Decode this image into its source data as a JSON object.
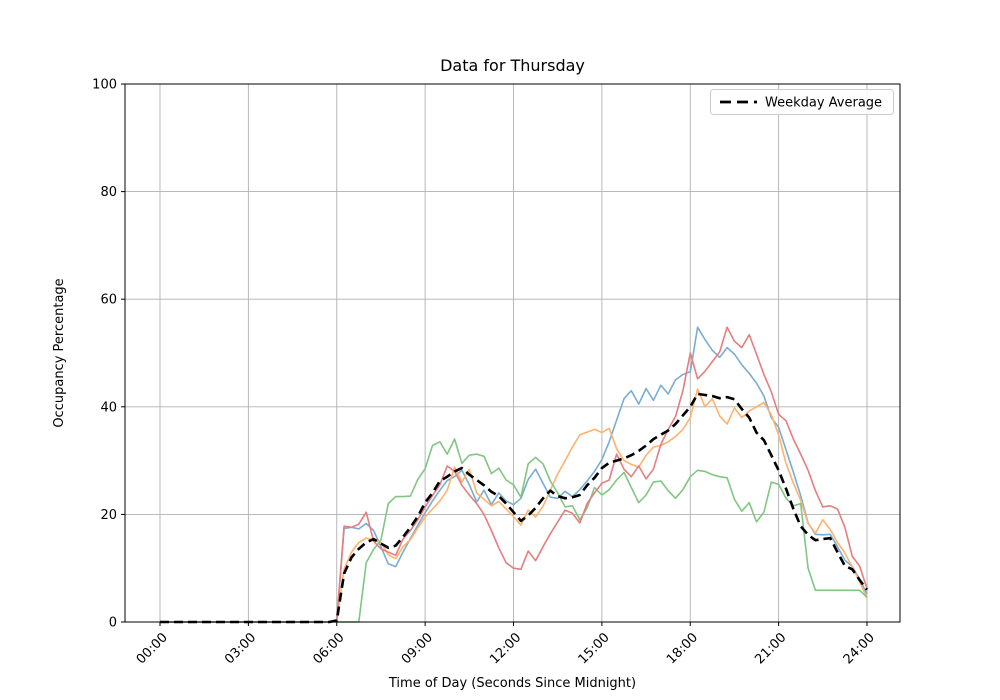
{
  "figure": {
    "title": "Data for Thursday",
    "xlabel": "Time of Day (Seconds Since Midnight)",
    "ylabel": "Occupancy Percentage",
    "legend_label": "Weekday Average"
  },
  "chart_data": {
    "type": "line",
    "title": "Data for Thursday",
    "xlabel": "Time of Day (Seconds Since Midnight)",
    "ylabel": "Occupancy Percentage",
    "ylim": [
      0,
      100
    ],
    "x_range_hours": [
      0,
      24
    ],
    "grid": true,
    "grid_color": "#b0b0b0",
    "x_tick_labels": [
      "00:00",
      "03:00",
      "06:00",
      "09:00",
      "12:00",
      "15:00",
      "18:00",
      "21:00",
      "24:00"
    ],
    "x_tick_hours": [
      0,
      3,
      6,
      9,
      12,
      15,
      18,
      21,
      24
    ],
    "y_ticks": [
      0,
      20,
      40,
      60,
      80,
      100
    ],
    "legend": {
      "position": "upper right",
      "entries": [
        {
          "label": "Weekday Average",
          "color": "#000000",
          "dashed": true
        }
      ]
    },
    "x_start_hour": 0,
    "x_step_hour": 0.25,
    "series": [
      {
        "name": "day-series-blue",
        "color": "#79add2",
        "base_color": "#1f77b4",
        "alpha": 0.6,
        "style": "solid",
        "width": 1.6,
        "values": [
          0,
          0,
          0,
          0,
          0,
          0,
          0,
          0,
          0,
          0,
          0,
          0,
          0,
          0,
          0,
          0,
          0,
          0,
          0,
          0,
          0,
          0,
          0,
          0,
          0.3,
          17.4,
          17.6,
          17.3,
          18.3,
          17.0,
          14.0,
          10.8,
          10.3,
          13.0,
          15.5,
          18.0,
          20.3,
          22.5,
          24.5,
          26.3,
          27.0,
          28.2,
          25.5,
          22.3,
          24.5,
          21.8,
          24.0,
          22.5,
          21.8,
          23.0,
          26.5,
          28.4,
          25.8,
          23.2,
          23.0,
          24.3,
          23.3,
          24.6,
          26.2,
          28.0,
          30.2,
          33.5,
          37.5,
          41.5,
          43.0,
          40.5,
          43.4,
          41.2,
          44.0,
          42.4,
          45.0,
          46.0,
          46.5,
          54.8,
          52.5,
          50.5,
          49.2,
          51.0,
          49.8,
          47.8,
          46.2,
          44.4,
          42.0,
          38.0,
          36.2,
          32.0,
          27.8,
          23.5,
          18.4,
          16.3,
          16.2,
          16.3,
          14.0,
          11.5,
          10.3,
          8.0,
          5.2
        ]
      },
      {
        "name": "day-series-orange",
        "color": "#ffb26e",
        "base_color": "#ff7f0e",
        "alpha": 0.6,
        "style": "solid",
        "width": 1.6,
        "values": [
          0,
          0,
          0,
          0,
          0,
          0,
          0,
          0,
          0,
          0,
          0,
          0,
          0,
          0,
          0,
          0,
          0,
          0,
          0,
          0,
          0,
          0,
          0,
          0,
          0.3,
          9.8,
          13.0,
          14.8,
          15.6,
          15.2,
          14.8,
          12.5,
          11.8,
          14.0,
          15.3,
          17.5,
          19.5,
          21.0,
          22.5,
          24.5,
          28.8,
          26.0,
          28.4,
          24.0,
          22.8,
          21.6,
          22.4,
          21.0,
          19.6,
          18.0,
          20.8,
          19.5,
          21.5,
          24.5,
          27.5,
          30.0,
          32.5,
          34.8,
          35.3,
          35.8,
          35.2,
          36.0,
          32.2,
          30.0,
          29.3,
          28.8,
          31.0,
          32.5,
          32.8,
          33.5,
          34.5,
          35.8,
          38.0,
          43.3,
          40.0,
          41.5,
          38.3,
          36.8,
          39.8,
          38.0,
          39.2,
          40.0,
          40.8,
          38.5,
          34.8,
          29.5,
          25.8,
          22.6,
          18.3,
          16.5,
          19.0,
          17.2,
          14.8,
          12.8,
          10.2,
          7.5,
          4.4
        ]
      },
      {
        "name": "day-series-green",
        "color": "#81c681",
        "base_color": "#2ca02c",
        "alpha": 0.6,
        "style": "solid",
        "width": 1.6,
        "values": [
          0,
          0,
          0,
          0,
          0,
          0,
          0,
          0,
          0,
          0,
          0,
          0,
          0,
          0,
          0,
          0,
          0,
          0,
          0,
          0,
          0,
          0,
          0,
          0,
          0,
          0,
          0,
          0,
          11.0,
          13.5,
          15.2,
          22.0,
          23.3,
          23.3,
          23.4,
          26.5,
          28.5,
          32.8,
          33.5,
          31.2,
          34.0,
          29.5,
          31.0,
          31.2,
          30.8,
          27.6,
          28.6,
          26.4,
          25.5,
          23.2,
          29.4,
          30.6,
          29.4,
          26.2,
          24.0,
          21.4,
          21.6,
          19.0,
          21.2,
          25.0,
          23.6,
          24.6,
          26.4,
          27.8,
          25.0,
          22.2,
          23.6,
          26.0,
          26.2,
          24.4,
          23.0,
          24.6,
          27.0,
          28.2,
          28.0,
          27.4,
          27.0,
          26.8,
          22.8,
          20.6,
          22.2,
          18.6,
          20.4,
          26.0,
          25.6,
          23.0,
          21.6,
          22.0,
          10.0,
          5.9,
          5.9,
          5.9,
          5.9,
          5.9,
          5.9,
          5.9,
          4.6
        ]
      },
      {
        "name": "day-series-red",
        "color": "#e67d7e",
        "base_color": "#d62728",
        "alpha": 0.6,
        "style": "solid",
        "width": 1.6,
        "values": [
          0,
          0,
          0,
          0,
          0,
          0,
          0,
          0,
          0,
          0,
          0,
          0,
          0,
          0,
          0,
          0,
          0,
          0,
          0,
          0,
          0,
          0,
          0,
          0,
          0.3,
          17.8,
          17.6,
          18.2,
          20.4,
          15.0,
          13.6,
          13.0,
          12.4,
          15.4,
          17.0,
          19.0,
          21.4,
          23.5,
          25.5,
          29.0,
          28.0,
          25.4,
          23.6,
          22.0,
          20.0,
          17.0,
          13.8,
          11.0,
          10.0,
          9.8,
          13.2,
          11.4,
          14.0,
          16.4,
          18.6,
          20.8,
          20.2,
          18.4,
          22.0,
          24.0,
          25.8,
          26.4,
          31.2,
          28.4,
          27.0,
          29.0,
          26.6,
          28.4,
          33.0,
          35.8,
          38.2,
          43.0,
          50.0,
          45.2,
          46.6,
          48.4,
          50.2,
          54.8,
          52.2,
          51.0,
          53.4,
          49.8,
          46.0,
          42.8,
          38.6,
          37.4,
          34.0,
          31.2,
          28.2,
          24.4,
          21.4,
          21.6,
          21.0,
          17.6,
          12.2,
          10.4,
          6.2
        ]
      },
      {
        "name": "weekday-average",
        "color": "#000000",
        "style": "dashed",
        "width": 2.6,
        "values": [
          0,
          0,
          0,
          0,
          0,
          0,
          0,
          0,
          0,
          0,
          0,
          0,
          0,
          0,
          0,
          0,
          0,
          0,
          0,
          0,
          0,
          0,
          0,
          0,
          0.3,
          9.0,
          12.0,
          13.6,
          14.8,
          15.4,
          14.6,
          13.8,
          14.2,
          15.8,
          17.6,
          19.6,
          22.2,
          24.0,
          26.2,
          27.0,
          28.0,
          28.6,
          27.4,
          26.4,
          25.4,
          24.2,
          23.4,
          22.0,
          20.4,
          18.8,
          19.8,
          21.2,
          23.0,
          24.4,
          23.4,
          23.0,
          23.2,
          23.6,
          25.4,
          26.8,
          28.6,
          29.6,
          30.0,
          30.4,
          31.0,
          31.8,
          32.8,
          34.0,
          34.8,
          35.6,
          36.8,
          38.4,
          40.0,
          42.4,
          42.2,
          42.0,
          41.6,
          41.8,
          41.4,
          39.6,
          38.0,
          35.2,
          33.8,
          31.0,
          28.2,
          24.8,
          21.0,
          17.8,
          16.2,
          15.2,
          15.4,
          15.6,
          13.0,
          10.4,
          9.8,
          7.8,
          6.0
        ]
      }
    ]
  }
}
